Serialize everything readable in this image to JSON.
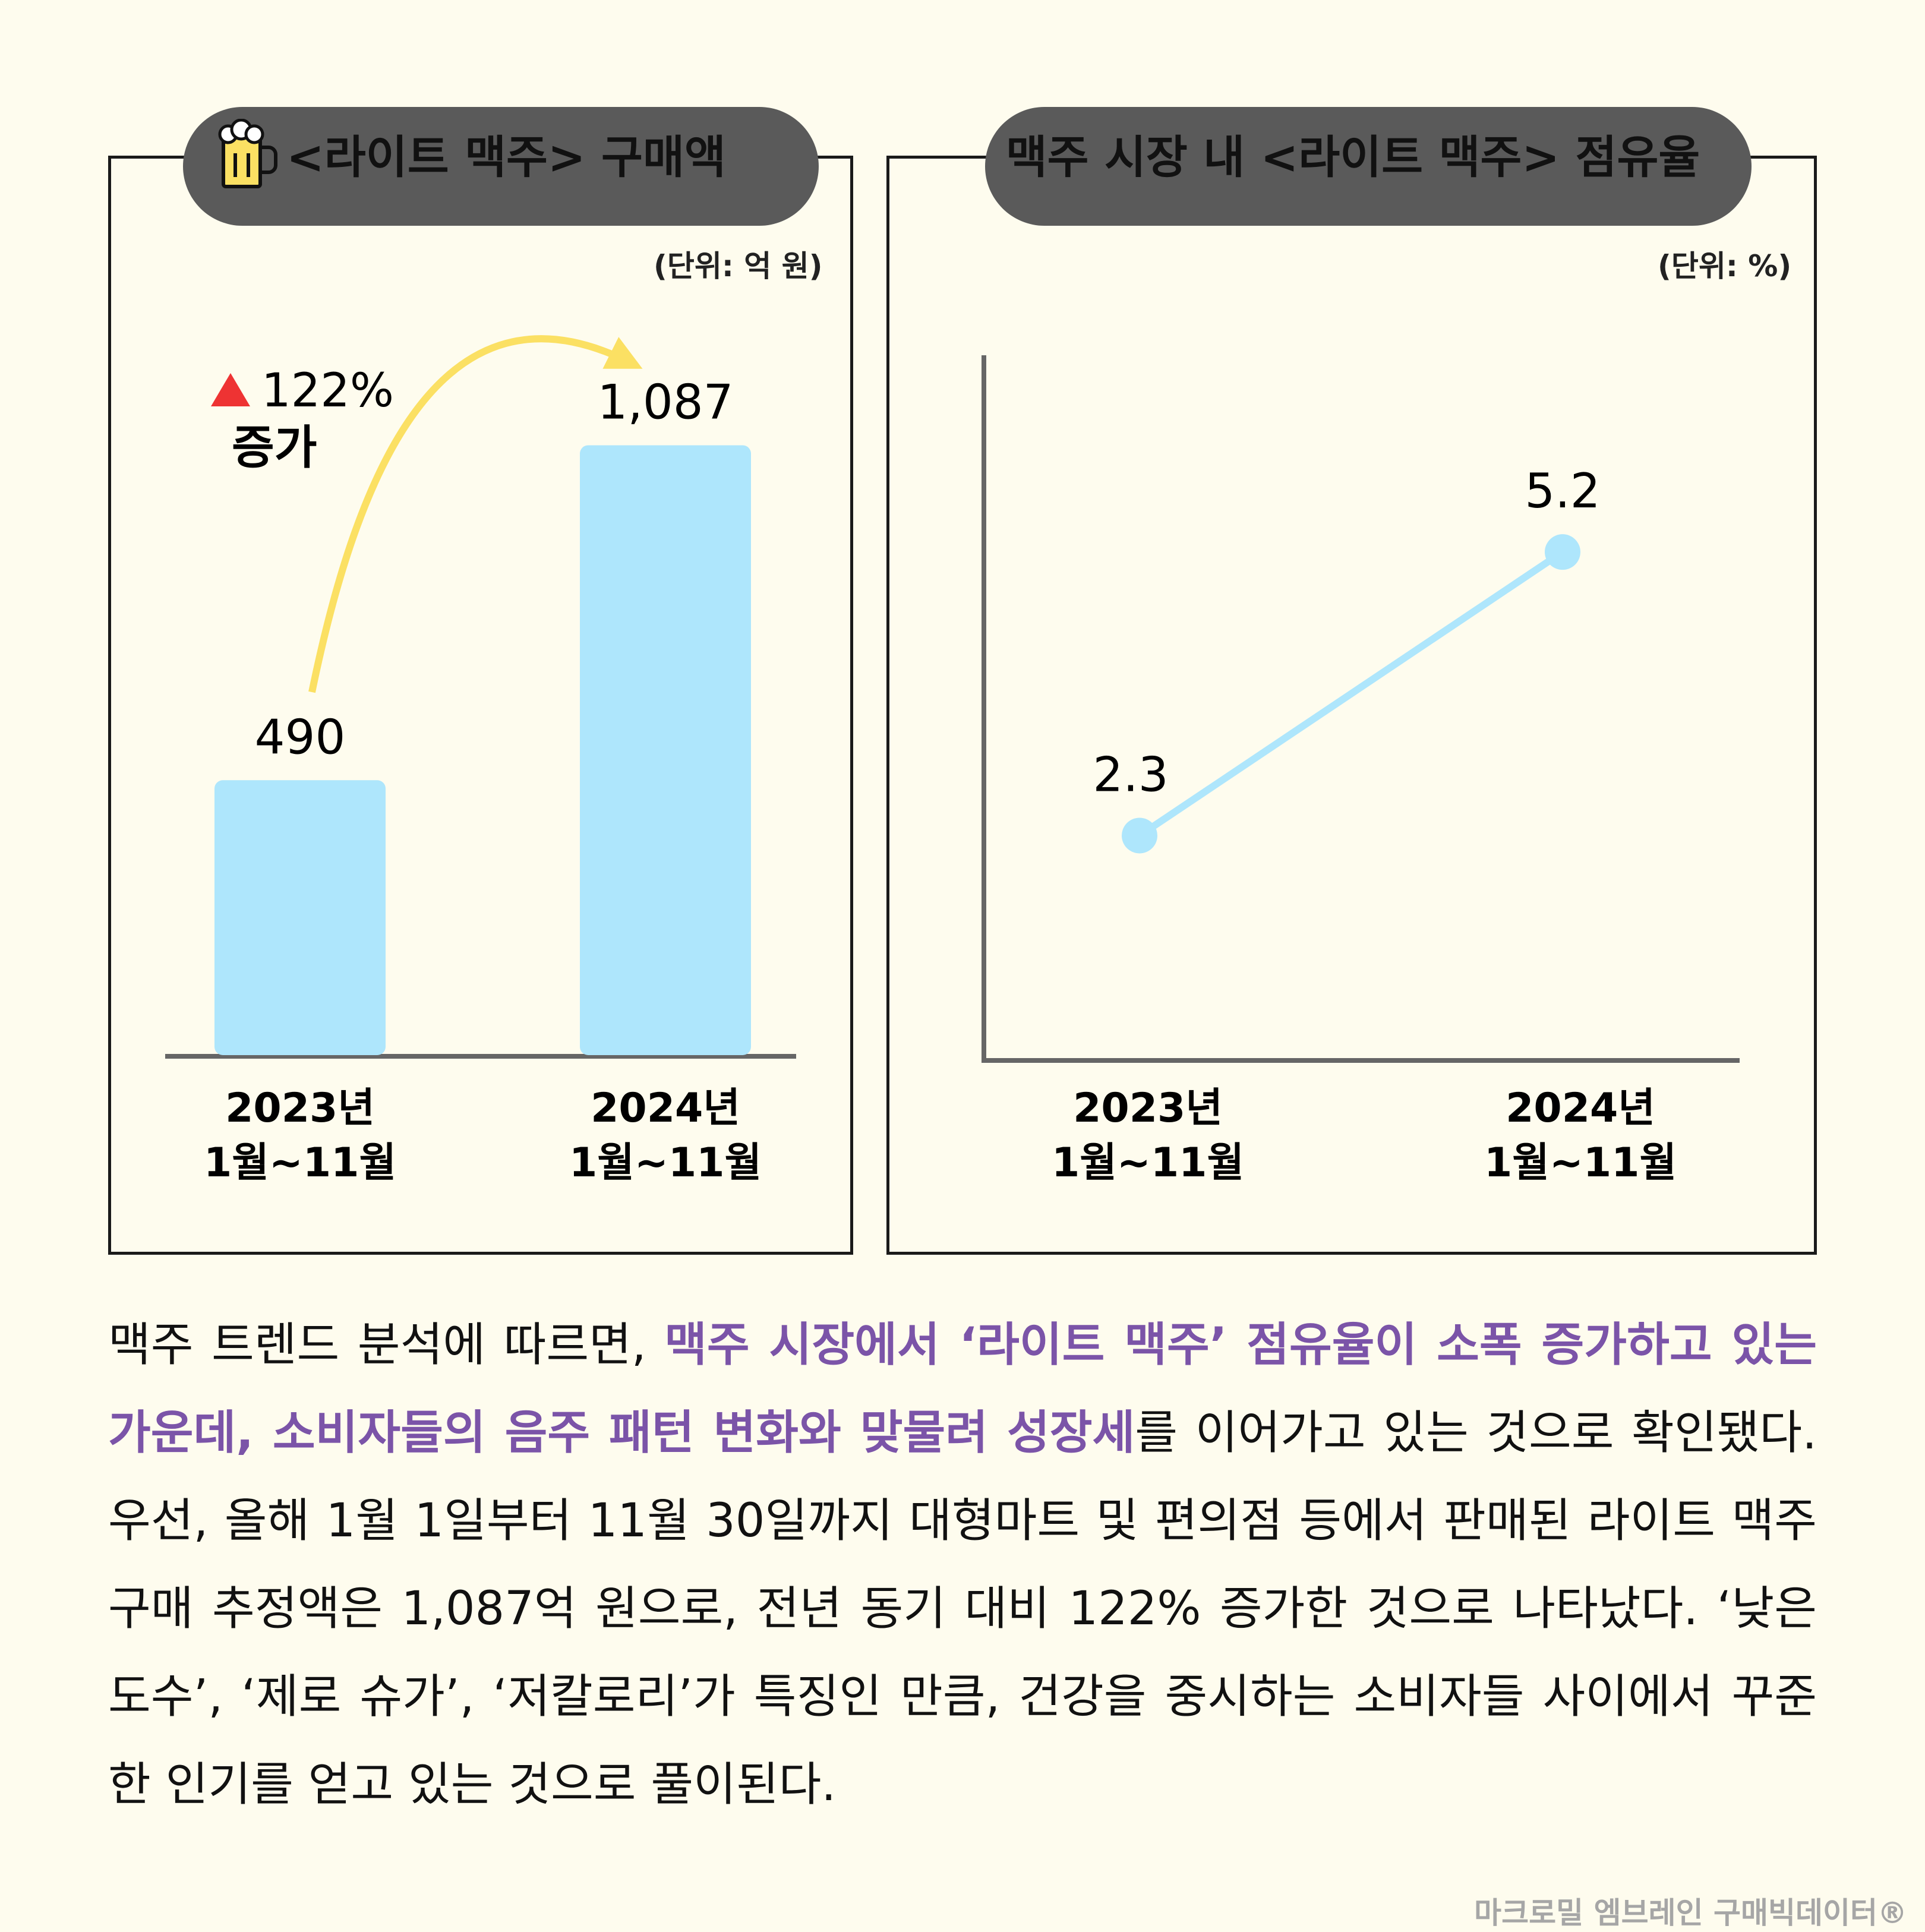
{
  "colors": {
    "background": "#fefcee",
    "pill": "#fbe063",
    "bar": "#aee6fc",
    "line": "#aee6fc",
    "arrow": "#fbe063",
    "up_triangle": "#ee3333",
    "highlight": "#7b54a8",
    "credit": "#a6a6a6"
  },
  "left_panel": {
    "title": "<라이트 맥주> 구매액",
    "icon": "beer-mug-icon",
    "unit": "(단위: 억 원)",
    "growth_pct": "122%",
    "growth_word": "증가"
  },
  "right_panel": {
    "title": "맥주 시장 내 <라이트 맥주> 점유율",
    "unit": "(단위: %)"
  },
  "chart_data": [
    {
      "type": "bar",
      "title": "<라이트 맥주> 구매액",
      "unit": "(단위: 억 원)",
      "categories": [
        [
          "2023년",
          "1월~11월"
        ],
        [
          "2024년",
          "1월~11월"
        ]
      ],
      "values": [
        490,
        1087
      ],
      "data_labels": [
        "490",
        "1,087"
      ],
      "annotation": "▲ 122% 증가",
      "ylim": [
        0,
        1150
      ],
      "grid": false
    },
    {
      "type": "line",
      "title": "맥주 시장 내 <라이트 맥주> 점유율",
      "unit": "(단위: %)",
      "categories": [
        [
          "2023년",
          "1월~11월"
        ],
        [
          "2024년",
          "1월~11월"
        ]
      ],
      "values": [
        2.3,
        5.2
      ],
      "data_labels": [
        "2.3",
        "5.2"
      ],
      "ylim": [
        0,
        7.2
      ],
      "grid": false
    }
  ],
  "body": {
    "part1": "맥주 트렌드 분석에 따르면, ",
    "highlight": "맥주 시장에서 ‘라이트 맥주’ 점유율이 소폭 증가하고 있는 가운데, 소비자들의 음주 패턴 변화와 맞물려 성장세",
    "part2": "를 이어가고 있는 것으로 확인됐다. 우선, 올해 1월 1일부터 11월 30일까지 대형마트 및 편의점 등에서 판매된 라이트 맥주 구매 추정액은 1,087억 원으로, 전년 동기 대비 122% 증가한 것으로 나타났다. ‘낮은 도수’, ‘제로 슈가’, ‘저칼로리’가 특징인 만큼, 건강을 중시하는 소비자들 사이에서 꾸준한 인기를 얻고 있는 것으로 풀이된다."
  },
  "credit": "마크로밀 엠브레인 구매빅데이터®"
}
